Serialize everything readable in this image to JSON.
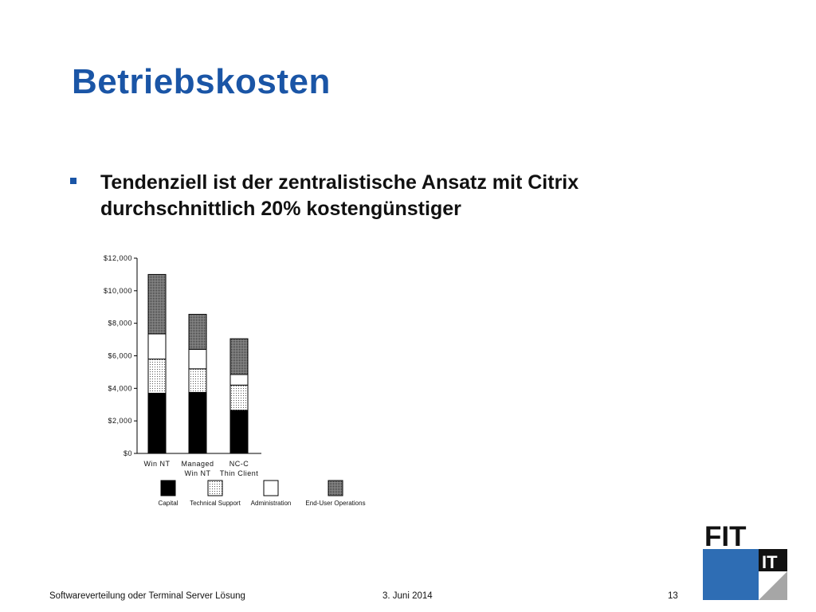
{
  "slide": {
    "title": "Betriebskosten",
    "bullet": "Tendenziell ist der zentralistische Ansatz mit Citrix durchschnittlich 20% kostengünstiger"
  },
  "footer": {
    "left": "Softwareverteilung oder Terminal Server Lösung",
    "date": "3. Juni 2014",
    "page": "13"
  },
  "logo": {
    "top_text": "FIT",
    "bottom_text": "IT",
    "colors": {
      "blue": "#2e6db4",
      "black": "#111111",
      "gray": "#a6a6a6"
    }
  },
  "chart_data": {
    "type": "bar",
    "stacked": true,
    "categories": [
      [
        "Win NT"
      ],
      [
        "Managed",
        "Win NT"
      ],
      [
        "NC-C",
        "Thin Client"
      ]
    ],
    "series": [
      {
        "name": "Capital",
        "pattern": "solid-black",
        "values": [
          3700,
          3750,
          2650
        ]
      },
      {
        "name": "Technical Support",
        "pattern": "light-dots",
        "values": [
          2100,
          1450,
          1550
        ]
      },
      {
        "name": "Administration",
        "pattern": "white",
        "values": [
          1550,
          1200,
          650
        ]
      },
      {
        "name": "End-User Operations",
        "pattern": "dark-dots",
        "values": [
          3650,
          2150,
          2200
        ]
      }
    ],
    "yticks": [
      "$0",
      "$2,000",
      "$4,000",
      "$6,000",
      "$8,000",
      "$10,000",
      "$12,000"
    ],
    "ylim": [
      0,
      12000
    ],
    "legend_position": "bottom",
    "grid": false
  }
}
